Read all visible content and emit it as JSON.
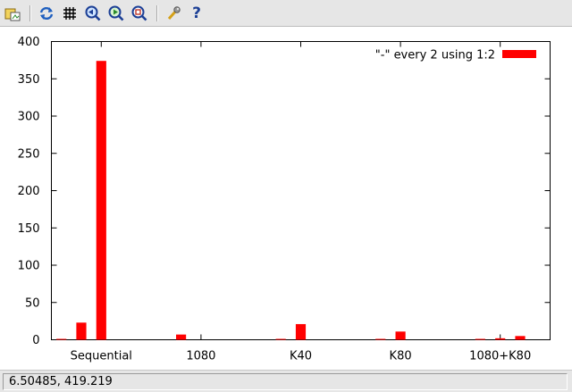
{
  "toolbar": {
    "items": [
      {
        "name": "export-icon"
      },
      {
        "name": "replot-icon"
      },
      {
        "name": "grid-icon"
      },
      {
        "name": "zoom-previous-icon"
      },
      {
        "name": "zoom-next-icon"
      },
      {
        "name": "unzoom-icon"
      },
      {
        "name": "options-icon"
      },
      {
        "name": "help-icon",
        "label": "?"
      }
    ]
  },
  "status": {
    "coordinates": "6.50485,  419.219"
  },
  "chart_data": {
    "type": "bar",
    "ylim": [
      0,
      400
    ],
    "yticks": [
      0,
      50,
      100,
      150,
      200,
      250,
      300,
      350,
      400
    ],
    "xlim": [
      -0.5,
      24.5
    ],
    "xticks": [
      {
        "x": 2,
        "label": "Sequential"
      },
      {
        "x": 7,
        "label": "1080"
      },
      {
        "x": 12,
        "label": "K40"
      },
      {
        "x": 17,
        "label": "K80"
      },
      {
        "x": 22,
        "label": "1080+K80"
      }
    ],
    "legend": {
      "label": "\"-\" every 2 using 1:2",
      "position": "top-right"
    },
    "bar_width": 0.5,
    "bars_color": "#ff0000",
    "series": [
      {
        "x": [
          0,
          1,
          2,
          6,
          11,
          12,
          16,
          17,
          21,
          22,
          23
        ],
        "values": [
          1,
          23,
          374,
          7,
          1,
          21,
          1,
          11,
          1,
          2,
          5
        ]
      }
    ]
  }
}
